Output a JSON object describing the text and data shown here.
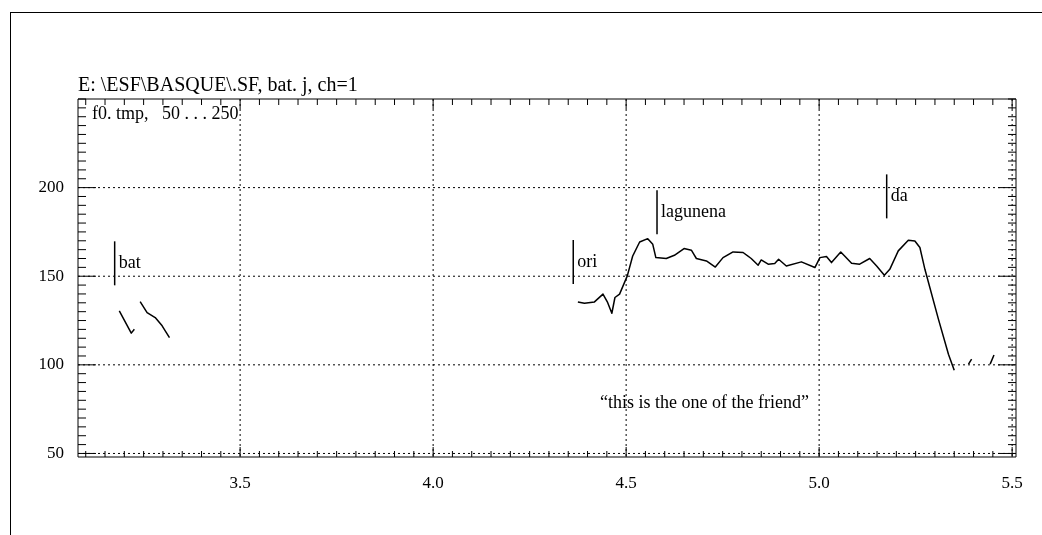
{
  "chart_data": {
    "type": "line",
    "title": "E: \\ESF\\BASQUE\\.SF, bat. j, ch=1",
    "subtitle": "f0. tmp,   50 . . . 250",
    "series": [
      {
        "color": "#000000",
        "x": [
          3.187,
          3.218,
          3.226,
          3.23,
          3.241,
          3.259,
          3.28,
          3.298,
          3.306,
          3.317,
          3.33,
          4.375,
          4.392,
          4.418,
          4.44,
          4.452,
          4.463,
          4.471,
          4.483,
          4.503,
          4.517,
          4.535,
          4.556,
          4.569,
          4.577,
          4.604,
          4.625,
          4.65,
          4.669,
          4.682,
          4.708,
          4.731,
          4.751,
          4.777,
          4.803,
          4.824,
          4.842,
          4.85,
          4.868,
          4.885,
          4.895,
          4.915,
          4.954,
          4.989,
          5.002,
          5.019,
          5.032,
          5.056,
          5.084,
          5.105,
          5.131,
          5.149,
          5.169,
          5.183,
          5.205,
          5.231,
          5.248,
          5.261,
          5.274,
          5.309,
          5.335,
          5.35,
          5.37,
          5.387,
          5.395,
          5.42,
          5.443,
          5.453
        ],
        "values": [
          130.4,
          117.9,
          120.1,
          null,
          135.7,
          129.5,
          126.7,
          122.0,
          119.2,
          115.4,
          null,
          135.5,
          134.8,
          135.5,
          139.9,
          135.2,
          129.1,
          138.0,
          139.9,
          150.2,
          161.4,
          169.3,
          171.2,
          168.0,
          160.5,
          160.0,
          161.8,
          165.6,
          164.7,
          160.0,
          158.6,
          155.2,
          160.5,
          163.7,
          163.4,
          160.0,
          156.2,
          159.2,
          156.8,
          157.2,
          159.6,
          155.8,
          158.1,
          154.9,
          160.5,
          161.1,
          157.7,
          163.7,
          157.3,
          156.8,
          160.0,
          155.8,
          150.6,
          153.9,
          164.3,
          170.3,
          169.9,
          166.2,
          153.9,
          125.8,
          106.0,
          97.0,
          null,
          100.4,
          103.2,
          null,
          100.4,
          105.6
        ]
      }
    ],
    "xlim": [
      3.08,
      5.51
    ],
    "ylim": [
      48,
      250
    ],
    "xticks": [
      {
        "value": 3.1,
        "label": null
      },
      {
        "value": 3.15,
        "label": null
      },
      {
        "value": 3.2,
        "label": null
      },
      {
        "value": 3.25,
        "label": null
      },
      {
        "value": 3.3,
        "label": null
      },
      {
        "value": 3.35,
        "label": null
      },
      {
        "value": 3.4,
        "label": null
      },
      {
        "value": 3.45,
        "label": null
      },
      3.5,
      {
        "value": 3.55,
        "label": null
      },
      {
        "value": 3.6,
        "label": null
      },
      {
        "value": 3.65,
        "label": null
      },
      {
        "value": 3.7,
        "label": null
      },
      {
        "value": 3.75,
        "label": null
      },
      {
        "value": 3.8,
        "label": null
      },
      {
        "value": 3.85,
        "label": null
      },
      {
        "value": 3.9,
        "label": null
      },
      {
        "value": 3.95,
        "label": null
      },
      {
        "value": 4,
        "label": "4.0"
      },
      {
        "value": 4.05,
        "label": null
      },
      {
        "value": 4.1,
        "label": null
      },
      {
        "value": 4.15,
        "label": null
      },
      {
        "value": 4.2,
        "label": null
      },
      {
        "value": 4.25,
        "label": null
      },
      {
        "value": 4.3,
        "label": null
      },
      {
        "value": 4.35,
        "label": null
      },
      {
        "value": 4.4,
        "label": null
      },
      {
        "value": 4.45,
        "label": null
      },
      4.5,
      {
        "value": 4.55,
        "label": null
      },
      {
        "value": 4.6,
        "label": null
      },
      {
        "value": 4.65,
        "label": null
      },
      {
        "value": 4.7,
        "label": null
      },
      {
        "value": 4.75,
        "label": null
      },
      {
        "value": 4.8,
        "label": null
      },
      {
        "value": 4.85,
        "label": null
      },
      {
        "value": 4.9,
        "label": null
      },
      {
        "value": 4.95,
        "label": null
      },
      {
        "value": 5,
        "label": "5.0"
      },
      {
        "value": 5.05,
        "label": null
      },
      {
        "value": 5.1,
        "label": null
      },
      {
        "value": 5.15,
        "label": null
      },
      {
        "value": 5.2,
        "label": null
      },
      {
        "value": 5.25,
        "label": null
      },
      {
        "value": 5.3,
        "label": null
      },
      {
        "value": 5.35,
        "label": null
      },
      {
        "value": 5.4,
        "label": null
      },
      {
        "value": 5.45,
        "label": null
      },
      5.5
    ],
    "yticks": [
      50,
      {
        "value": 55,
        "label": null
      },
      {
        "value": 60,
        "label": null
      },
      {
        "value": 65,
        "label": null
      },
      {
        "value": 70,
        "label": null
      },
      {
        "value": 75,
        "label": null
      },
      {
        "value": 80,
        "label": null
      },
      {
        "value": 85,
        "label": null
      },
      {
        "value": 90,
        "label": null
      },
      {
        "value": 95,
        "label": null
      },
      100,
      {
        "value": 105,
        "label": null
      },
      {
        "value": 110,
        "label": null
      },
      {
        "value": 115,
        "label": null
      },
      {
        "value": 120,
        "label": null
      },
      {
        "value": 125,
        "label": null
      },
      {
        "value": 130,
        "label": null
      },
      {
        "value": 135,
        "label": null
      },
      {
        "value": 140,
        "label": null
      },
      {
        "value": 145,
        "label": null
      },
      150,
      {
        "value": 155,
        "label": null
      },
      {
        "value": 160,
        "label": null
      },
      {
        "value": 165,
        "label": null
      },
      {
        "value": 170,
        "label": null
      },
      {
        "value": 175,
        "label": null
      },
      {
        "value": 180,
        "label": null
      },
      {
        "value": 185,
        "label": null
      },
      {
        "value": 190,
        "label": null
      },
      {
        "value": 195,
        "label": null
      },
      200,
      {
        "value": 205,
        "label": null
      },
      {
        "value": 210,
        "label": null
      },
      {
        "value": 215,
        "label": null
      },
      {
        "value": 220,
        "label": null
      },
      {
        "value": 225,
        "label": null
      },
      {
        "value": 230,
        "label": null
      },
      {
        "value": 235,
        "label": null
      },
      {
        "value": 240,
        "label": null
      },
      {
        "value": 245,
        "label": null
      },
      {
        "value": 250,
        "label": null
      }
    ],
    "grid": true,
    "legend": false,
    "ref_lines": [
      {
        "axis": "x",
        "value": 3.175,
        "label": "bat"
      },
      {
        "axis": "x",
        "value": 4.363,
        "label": "ori"
      },
      {
        "axis": "x",
        "value": 4.58,
        "label": "lagunena"
      },
      {
        "axis": "x",
        "value": 5.175,
        "label": "da"
      }
    ],
    "annotations": [
      "“this is the one of the friend”"
    ]
  }
}
